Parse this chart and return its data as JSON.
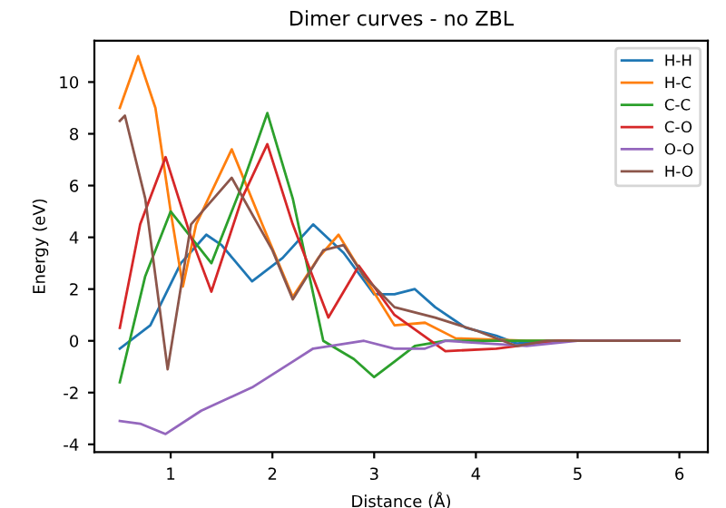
{
  "chart_data": {
    "type": "line",
    "title": "Dimer curves - no ZBL",
    "xlabel": "Distance (Å)",
    "ylabel": "Energy (eV)",
    "xlim": [
      0.25,
      6.28
    ],
    "ylim": [
      -4.3,
      11.6
    ],
    "xticks": [
      1,
      2,
      3,
      4,
      5,
      6
    ],
    "yticks": [
      -4,
      -2,
      0,
      2,
      4,
      6,
      8,
      10
    ],
    "grid": false,
    "legend": "top right",
    "marker": "none",
    "line_style": "solid",
    "series": [
      {
        "name": "H-H",
        "color": "#1f77b4",
        "x": [
          0.5,
          0.8,
          1.1,
          1.35,
          1.5,
          1.8,
          2.1,
          2.4,
          2.7,
          3.0,
          3.2,
          3.4,
          3.6,
          3.9,
          4.2,
          4.4,
          4.8,
          6.0
        ],
        "values": [
          -0.3,
          0.6,
          3.0,
          4.1,
          3.7,
          2.3,
          3.2,
          4.5,
          3.4,
          1.8,
          1.8,
          2.0,
          1.3,
          0.5,
          0.2,
          -0.1,
          0,
          0
        ]
      },
      {
        "name": "H-C",
        "color": "#ff7f0e",
        "x": [
          0.5,
          0.68,
          0.85,
          1.0,
          1.12,
          1.25,
          1.6,
          1.9,
          2.2,
          2.45,
          2.65,
          2.9,
          3.2,
          3.5,
          3.8,
          4.5,
          6.0
        ],
        "values": [
          9.0,
          11.0,
          9.0,
          5.0,
          2.1,
          4.5,
          7.4,
          4.5,
          1.7,
          3.2,
          4.1,
          2.5,
          0.6,
          0.7,
          0.1,
          0,
          0
        ]
      },
      {
        "name": "C-C",
        "color": "#2ca02c",
        "x": [
          0.5,
          0.75,
          1.0,
          1.2,
          1.4,
          1.7,
          1.95,
          2.2,
          2.5,
          2.8,
          3.0,
          3.2,
          3.4,
          3.7,
          4.5,
          6.0
        ],
        "values": [
          -1.6,
          2.5,
          5.0,
          4.0,
          3.0,
          6.0,
          8.8,
          5.5,
          0.0,
          -0.7,
          -1.4,
          -0.8,
          -0.2,
          0,
          0,
          0
        ]
      },
      {
        "name": "C-O",
        "color": "#d62728",
        "x": [
          0.5,
          0.7,
          0.95,
          1.2,
          1.4,
          1.7,
          1.95,
          2.2,
          2.55,
          2.85,
          3.2,
          3.7,
          4.2,
          4.8,
          6.0
        ],
        "values": [
          0.5,
          4.5,
          7.1,
          4.0,
          1.9,
          5.5,
          7.6,
          4.5,
          0.9,
          2.9,
          1.0,
          -0.4,
          -0.3,
          0,
          0
        ]
      },
      {
        "name": "O-O",
        "color": "#9467bd",
        "x": [
          0.5,
          0.7,
          0.95,
          1.3,
          1.8,
          2.2,
          2.4,
          2.9,
          3.2,
          3.5,
          3.7,
          4.5,
          5.0,
          6.0
        ],
        "values": [
          -3.1,
          -3.2,
          -3.6,
          -2.7,
          -1.8,
          -0.8,
          -0.3,
          0,
          -0.3,
          -0.3,
          0,
          -0.2,
          0,
          0
        ]
      },
      {
        "name": "H-O",
        "color": "#8c564b",
        "x": [
          0.5,
          0.55,
          0.75,
          0.97,
          1.2,
          1.6,
          2.0,
          2.2,
          2.5,
          2.7,
          2.9,
          3.2,
          3.6,
          4.0,
          4.4,
          4.7,
          6.0
        ],
        "values": [
          8.5,
          8.7,
          5.5,
          -1.1,
          4.5,
          6.3,
          3.5,
          1.6,
          3.5,
          3.7,
          2.5,
          1.3,
          0.9,
          0.4,
          -0.2,
          0,
          0
        ]
      }
    ]
  }
}
